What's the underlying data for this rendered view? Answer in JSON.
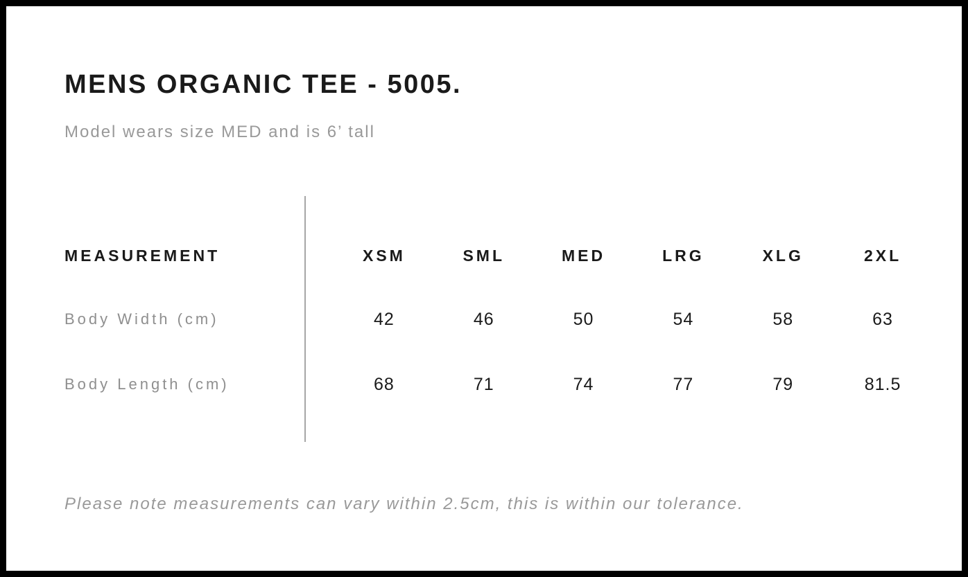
{
  "page": {
    "title": "MENS ORGANIC TEE - 5005.",
    "subtitle": "Model wears size MED and is 6’ tall",
    "tolerance_note": "Please note measurements can vary within 2.5cm, this is within our tolerance."
  },
  "colors": {
    "frame": "#000000",
    "heading_text": "#1a1a1a",
    "muted_text": "#999999",
    "label_text": "#8f8f8f",
    "value_text": "#1a1a1a",
    "divider": "#a6a6a6"
  },
  "chart_data": {
    "type": "table",
    "title": "MENS ORGANIC TEE - 5005.",
    "columns": [
      "MEASUREMENT",
      "XSM",
      "SML",
      "MED",
      "LRG",
      "XLG",
      "2XL"
    ],
    "rows": [
      {
        "label": "Body Width (cm)",
        "values": [
          42,
          46,
          50,
          54,
          58,
          63
        ]
      },
      {
        "label": "Body Length (cm)",
        "values": [
          68,
          71,
          74,
          77,
          79,
          81.5
        ]
      }
    ]
  }
}
